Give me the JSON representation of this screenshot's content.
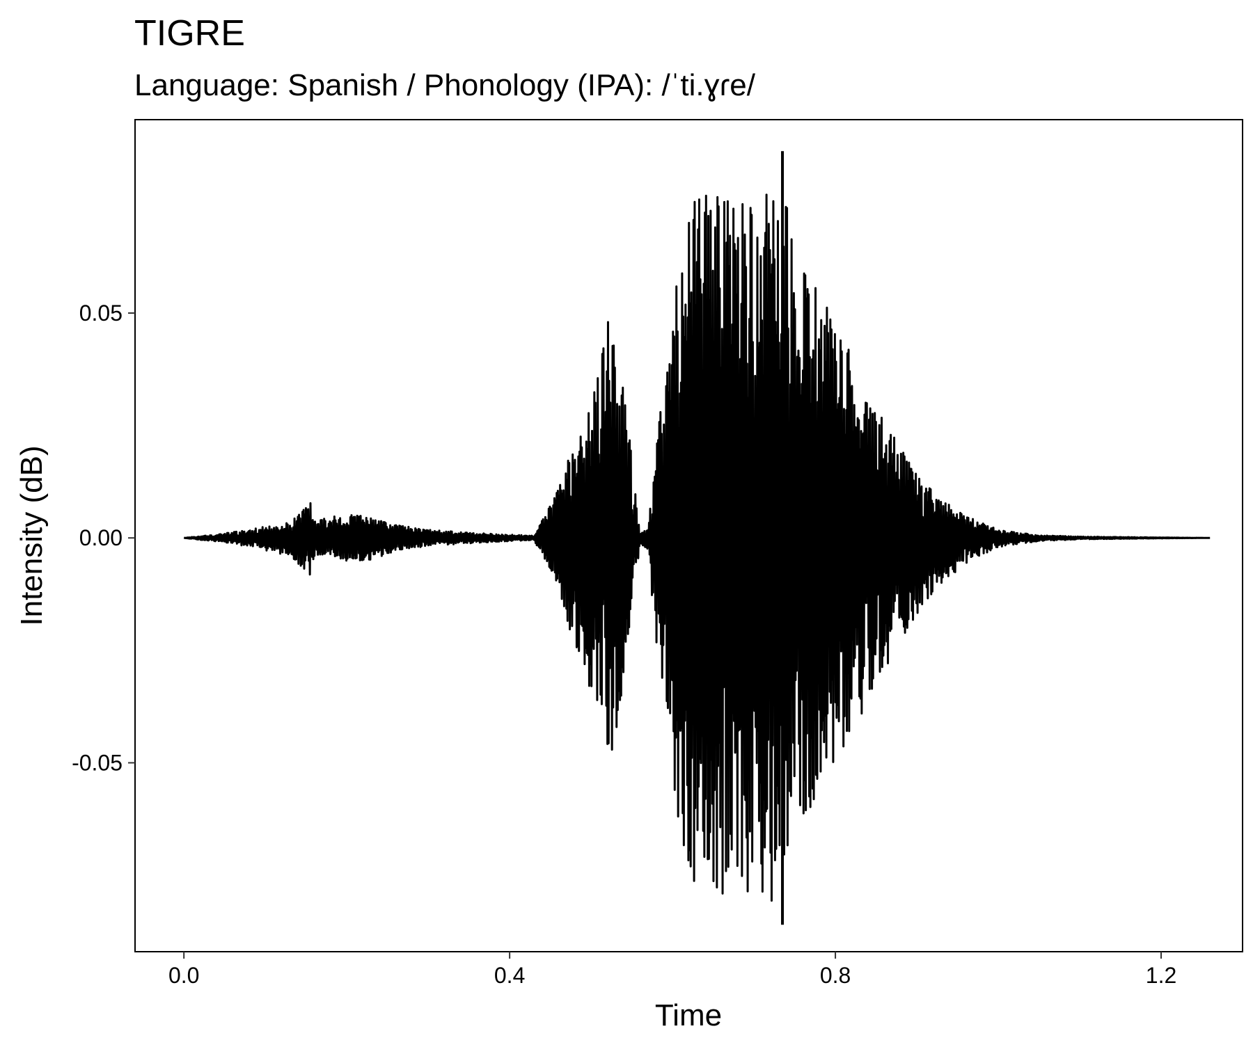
{
  "chart_data": {
    "type": "line",
    "title": "TIGRE",
    "subtitle": "Language: Spanish / Phonology (IPA): /ˈti.ɣɾe/",
    "xlabel": "Time",
    "ylabel": "Intensity (dB)",
    "xlim": [
      -0.06,
      1.3
    ],
    "ylim": [
      -0.092,
      0.093
    ],
    "x_ticks": [
      {
        "value": 0.0,
        "label": "0.0"
      },
      {
        "value": 0.4,
        "label": "0.4"
      },
      {
        "value": 0.8,
        "label": "0.8"
      },
      {
        "value": 1.2,
        "label": "1.2"
      }
    ],
    "y_ticks": [
      {
        "value": 0.05,
        "label": "0.05"
      },
      {
        "value": 0.0,
        "label": "0.00"
      },
      {
        "value": -0.05,
        "label": "-0.05"
      }
    ],
    "grid": false,
    "series": [
      {
        "color": "#000000",
        "envelope": {
          "time": [
            0.0,
            0.058,
            0.09,
            0.13,
            0.155,
            0.162,
            0.175,
            0.2,
            0.23,
            0.26,
            0.3,
            0.35,
            0.39,
            0.43,
            0.455,
            0.47,
            0.49,
            0.51,
            0.525,
            0.54,
            0.55,
            0.56,
            0.57,
            0.58,
            0.6,
            0.62,
            0.64,
            0.66,
            0.68,
            0.7,
            0.72,
            0.735,
            0.75,
            0.77,
            0.8,
            0.83,
            0.86,
            0.89,
            0.92,
            0.96,
            1.0,
            1.05,
            1.1,
            1.15,
            1.2,
            1.26
          ],
          "upper": [
            0.0,
            0.0012,
            0.0022,
            0.0035,
            0.0085,
            0.0035,
            0.0045,
            0.0052,
            0.0048,
            0.003,
            0.0018,
            0.0012,
            0.0008,
            0.0005,
            0.009,
            0.018,
            0.025,
            0.038,
            0.053,
            0.033,
            0.018,
            0.001,
            0.002,
            0.02,
            0.055,
            0.075,
            0.078,
            0.08,
            0.077,
            0.075,
            0.078,
            0.086,
            0.062,
            0.058,
            0.048,
            0.037,
            0.026,
            0.018,
            0.01,
            0.005,
            0.0018,
            0.0006,
            0.0003,
            0.0002,
            0.0001,
            0.0
          ],
          "lower": [
            0.0,
            -0.0012,
            -0.0024,
            -0.004,
            -0.0085,
            -0.004,
            -0.0045,
            -0.0052,
            -0.0048,
            -0.003,
            -0.0018,
            -0.0012,
            -0.0008,
            -0.0005,
            -0.009,
            -0.018,
            -0.032,
            -0.04,
            -0.05,
            -0.034,
            -0.018,
            -0.0012,
            -0.0025,
            -0.025,
            -0.058,
            -0.075,
            -0.08,
            -0.08,
            -0.077,
            -0.08,
            -0.08,
            -0.086,
            -0.068,
            -0.063,
            -0.05,
            -0.04,
            -0.03,
            -0.02,
            -0.012,
            -0.006,
            -0.002,
            -0.0007,
            -0.0003,
            -0.0002,
            -0.0001,
            0.0
          ]
        },
        "peak_max": {
          "time": 0.735,
          "value": 0.086
        },
        "peak_min": {
          "time": 0.735,
          "value": -0.086
        }
      }
    ],
    "legend": "none"
  }
}
